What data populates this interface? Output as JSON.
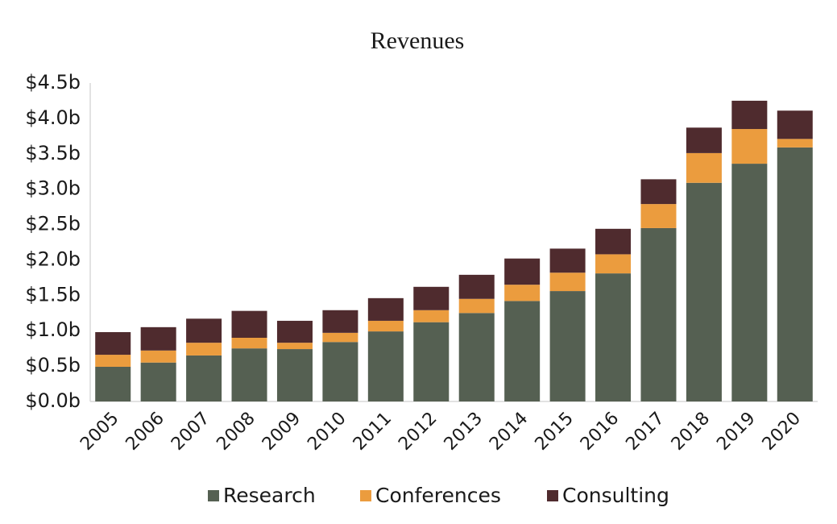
{
  "chart_data": {
    "type": "stacked_bar",
    "title": "Revenues",
    "categories": [
      "2005",
      "2006",
      "2007",
      "2008",
      "2009",
      "2010",
      "2011",
      "2012",
      "2013",
      "2014",
      "2015",
      "2016",
      "2017",
      "2018",
      "2019",
      "2020"
    ],
    "series": [
      {
        "name": "Research",
        "color": "#556052",
        "values": [
          0.49,
          0.55,
          0.65,
          0.75,
          0.74,
          0.84,
          0.99,
          1.12,
          1.25,
          1.42,
          1.56,
          1.81,
          2.45,
          3.09,
          3.36,
          3.59
        ]
      },
      {
        "name": "Conferences",
        "color": "#eb9c3e",
        "values": [
          0.17,
          0.17,
          0.18,
          0.15,
          0.09,
          0.13,
          0.15,
          0.17,
          0.2,
          0.23,
          0.26,
          0.27,
          0.34,
          0.42,
          0.49,
          0.12
        ]
      },
      {
        "name": "Consulting",
        "color": "#4f2b2e",
        "values": [
          0.32,
          0.33,
          0.34,
          0.38,
          0.31,
          0.32,
          0.32,
          0.33,
          0.34,
          0.37,
          0.34,
          0.36,
          0.35,
          0.36,
          0.4,
          0.4
        ]
      }
    ],
    "ylim": [
      0,
      4.5
    ],
    "yticks": [
      {
        "value": 0,
        "label": "$0.0b"
      },
      {
        "value": 0.5,
        "label": "$0.5b"
      },
      {
        "value": 1,
        "label": "$1.0b"
      },
      {
        "value": 1.5,
        "label": "$1.5b"
      },
      {
        "value": 2,
        "label": "$2.0b"
      },
      {
        "value": 2.5,
        "label": "$2.5b"
      },
      {
        "value": 3,
        "label": "$3.0b"
      },
      {
        "value": 3.5,
        "label": "$3.5b"
      },
      {
        "value": 4,
        "label": "$4.0b"
      },
      {
        "value": 4.5,
        "label": "$4.5b"
      }
    ],
    "legend": "bottom"
  }
}
